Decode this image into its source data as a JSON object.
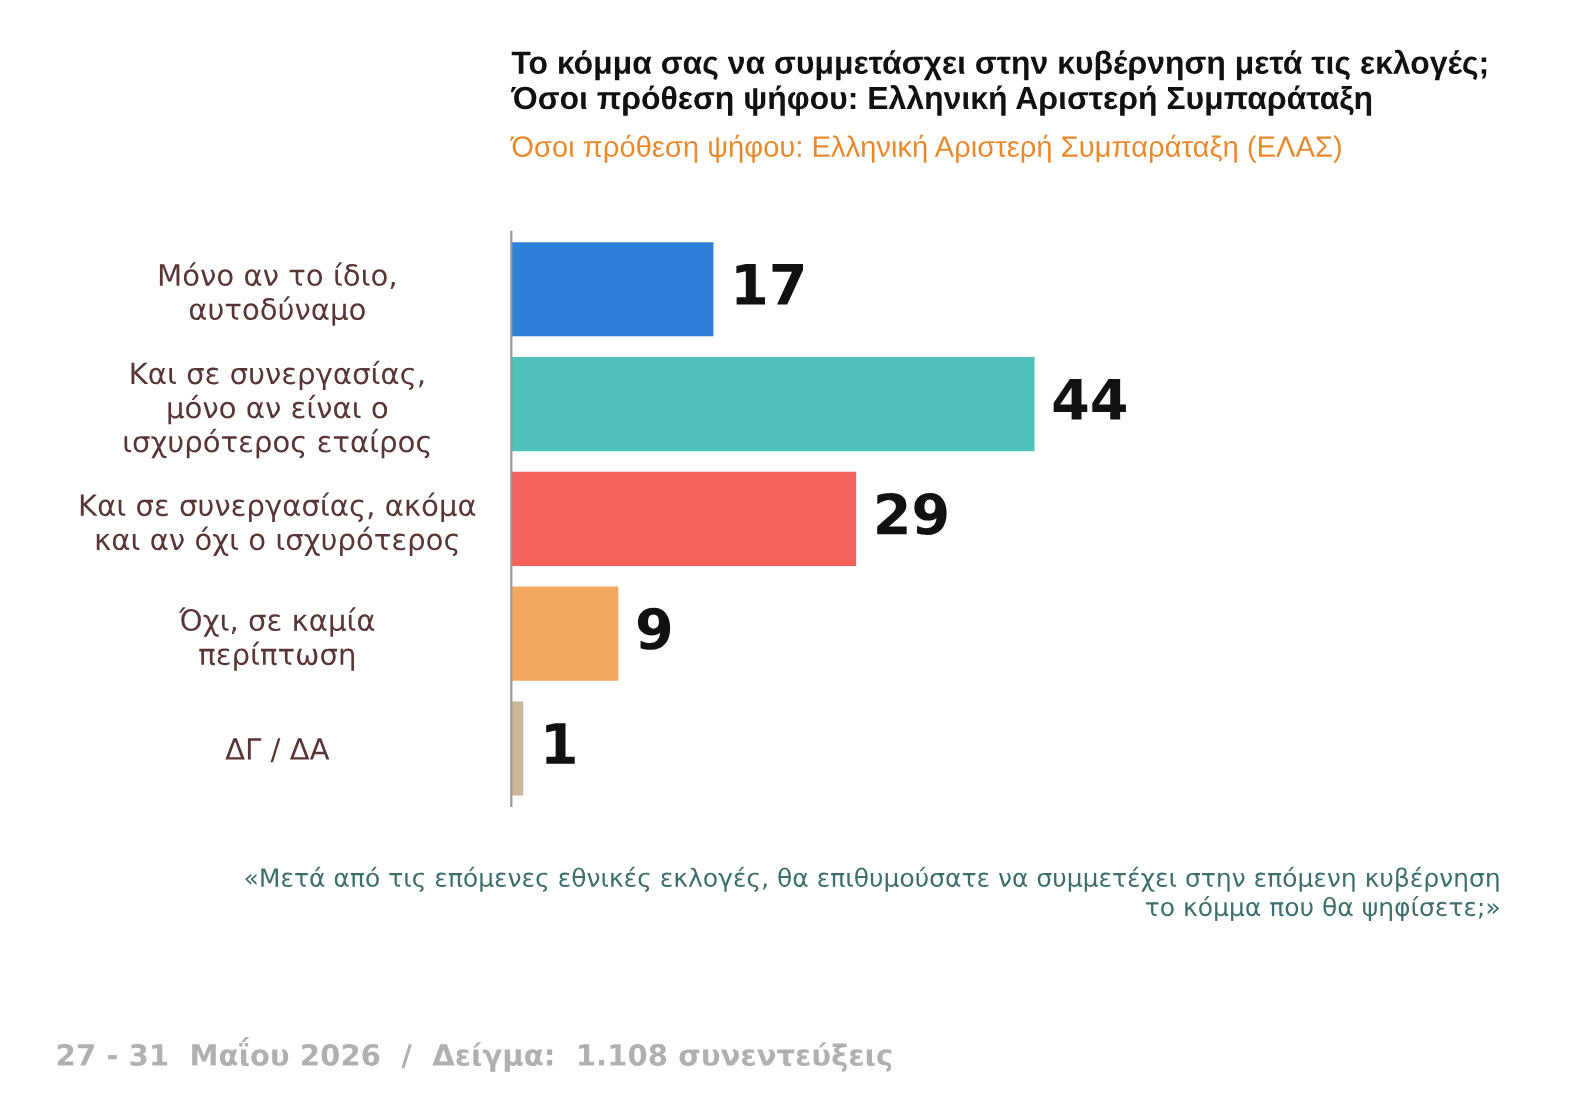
{
  "chart_data": {
    "type": "bar",
    "orientation": "horizontal",
    "title": "Το κόμμα σας να συμμετάσχει στην κυβέρνηση μετά τις εκλογές;\nΌσοι πρόθεση ψήφου: Ελληνική Αριστερή Συμπαράταξη",
    "subtitle": "Όσοι πρόθεση ψήφου: Ελληνική Αριστερή Συμπαράταξη (ΕΛΑΣ)",
    "categories": [
      "Μόνο αν το ίδιο,\nαυτοδύναμο",
      "Και σε συνεργασίας,\nμόνο αν είναι ο\nισχυρότερος εταίρος",
      "Και σε συνεργασίας, ακόμα\nκαι αν όχι ο ισχυρότερος",
      "Όχι, σε καμία\nπερίπτωση",
      "ΔΓ / ΔΑ"
    ],
    "values": [
      17,
      44,
      29,
      9,
      1
    ],
    "colors": [
      "#2f80d8",
      "#4fc1bb",
      "#f2625a",
      "#f3a860",
      "#c9b79a"
    ],
    "data_labels": true,
    "annotations": [
      "«Μετά από τις επόμενες εθνικές εκλογές, θα επιθυμούσατε να συμμετέχει στην επόμενη κυβέρνηση\nτο κόμμα που θα ψηφίσετε;»",
      "27 - 31  Μαΐου 2026  /  Δείγμα:  1.108 συνεντεύξεις"
    ],
    "grid": false,
    "legend": false
  }
}
